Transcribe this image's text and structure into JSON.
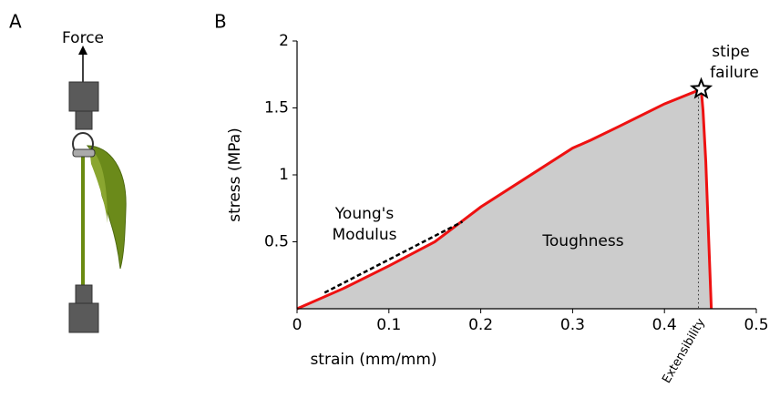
{
  "panel_labels": [
    "A",
    "B"
  ],
  "diagram": {
    "force_label": "Force"
  },
  "chart_data": {
    "type": "area-line",
    "xlabel": "strain (mm/mm)",
    "ylabel": "stress (MPa)",
    "xlim": [
      0,
      0.5
    ],
    "xticks": [
      0,
      0.1,
      0.2,
      0.3,
      0.4,
      0.5
    ],
    "ylim": [
      0,
      2
    ],
    "yticks": [
      0.5,
      1,
      1.5,
      2
    ],
    "series": [
      {
        "color": "#ee1111",
        "fill": "#cccccc",
        "x": [
          0,
          0.05,
          0.1,
          0.15,
          0.2,
          0.25,
          0.3,
          0.32,
          0.35,
          0.4,
          0.44,
          0.442,
          0.445,
          0.448,
          0.451
        ],
        "values": [
          0,
          0.15,
          0.32,
          0.5,
          0.76,
          0.98,
          1.2,
          1.26,
          1.36,
          1.53,
          1.64,
          1.48,
          1.1,
          0.55,
          0
        ]
      }
    ],
    "youngs_modulus_line": {
      "x": [
        0.03,
        0.18
      ],
      "y": [
        0.12,
        0.65
      ]
    },
    "extensibility_x": 0.437,
    "failure_point": 10,
    "annotations": {
      "youngs_modulus": [
        "Young's",
        "Modulus"
      ],
      "toughness": "Toughness",
      "failure": [
        "stipe",
        "failure"
      ],
      "extensibility": "Extensibility"
    }
  }
}
